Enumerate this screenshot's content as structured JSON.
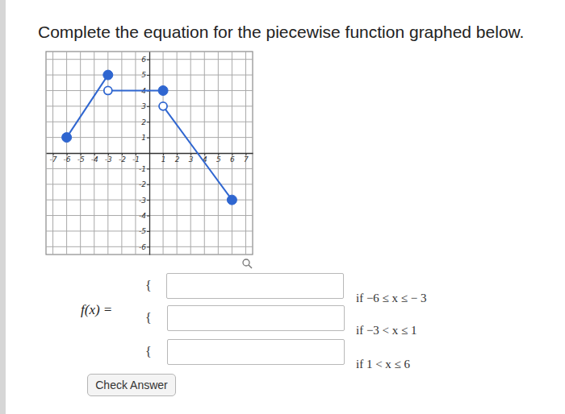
{
  "chart_data": {
    "type": "line",
    "xlim": [
      -7.5,
      7.5
    ],
    "ylim": [
      -6.5,
      6.5
    ],
    "xticks": [
      -7,
      -6,
      -5,
      -4,
      -3,
      -2,
      -1,
      1,
      2,
      3,
      4,
      5,
      6,
      7
    ],
    "yticks": [
      -6,
      -5,
      -4,
      -3,
      -2,
      -1,
      1,
      2,
      3,
      4,
      5,
      6
    ],
    "grid": true,
    "series": [
      {
        "type": "line",
        "color": "#2f66d0",
        "x": [
          -6,
          -3
        ],
        "values": [
          1,
          5
        ]
      },
      {
        "type": "line",
        "color": "#2f66d0",
        "x": [
          -3,
          1
        ],
        "values": [
          4,
          4
        ]
      },
      {
        "type": "line",
        "color": "#2f66d0",
        "x": [
          1,
          6
        ],
        "values": [
          3,
          -3
        ]
      },
      {
        "type": "scatter",
        "marker": "filled",
        "color": "#2f66d0",
        "x": [
          -6,
          -3,
          1,
          6
        ],
        "values": [
          1,
          5,
          4,
          -3
        ]
      },
      {
        "type": "scatter",
        "marker": "open",
        "color": "#2f66d0",
        "x": [
          -3,
          1
        ],
        "values": [
          4,
          3
        ]
      }
    ]
  },
  "page": {
    "question": "Complete the equation for the piecewise function graphed below.",
    "function_label": "f(x) =",
    "brace": "{",
    "conditions": [
      "if −6 ≤ x ≤ − 3",
      "if −3 < x ≤ 1",
      "if 1 < x ≤ 6"
    ],
    "button": "Check Answer"
  }
}
